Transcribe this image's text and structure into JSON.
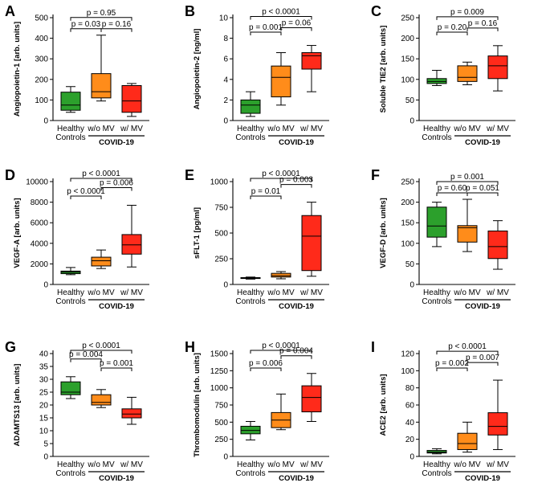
{
  "colors": {
    "healthy": "#2ca02c",
    "without_mv": "#ff8c1a",
    "with_mv": "#ff2a1a",
    "ink": "#000000"
  },
  "group_label": "COVID-19",
  "chart_data": [
    {
      "panel": "A",
      "type": "box",
      "ylabel": "Angiopoietin-1  [arb. units]",
      "ylim": [
        0,
        500
      ],
      "ticks": [
        0,
        100,
        200,
        300,
        400,
        500
      ],
      "tick_labels": [
        "0",
        "100",
        "200",
        "300",
        "400",
        "500"
      ],
      "categories": [
        [
          "Healthy",
          "Controls"
        ],
        [
          "w/o MV"
        ],
        [
          "w/ MV"
        ]
      ],
      "boxes": [
        {
          "min": 40,
          "q1": 50,
          "median": 75,
          "q3": 138,
          "max": 165
        },
        {
          "min": 95,
          "q1": 110,
          "median": 140,
          "q3": 228,
          "max": 415
        },
        {
          "min": 20,
          "q1": 40,
          "median": 95,
          "q3": 170,
          "max": 180
        }
      ],
      "brackets": [
        {
          "from": 0,
          "to": 2,
          "label": "p = 0.95",
          "level": 1
        },
        {
          "from": 0,
          "to": 1,
          "label": "p = 0.03",
          "level": 0
        },
        {
          "from": 1,
          "to": 2,
          "label": "p = 0.16",
          "level": 0
        }
      ]
    },
    {
      "panel": "B",
      "type": "box",
      "ylabel": "Angiopoietin-2  [ng/ml]",
      "ylim": [
        0,
        10
      ],
      "ticks": [
        0,
        2,
        4,
        6,
        8,
        10
      ],
      "tick_labels": [
        "0",
        "2",
        "4",
        "6",
        "8",
        "10"
      ],
      "categories": [
        [
          "Healthy",
          "Controls"
        ],
        [
          "w/o MV"
        ],
        [
          "w/ MV"
        ]
      ],
      "boxes": [
        {
          "min": 0.4,
          "q1": 0.7,
          "median": 1.5,
          "q3": 2.0,
          "max": 2.8
        },
        {
          "min": 1.5,
          "q1": 2.3,
          "median": 4.2,
          "q3": 5.3,
          "max": 6.6
        },
        {
          "min": 2.8,
          "q1": 5.0,
          "median": 6.3,
          "q3": 6.6,
          "max": 7.3
        }
      ],
      "brackets": [
        {
          "from": 0,
          "to": 2,
          "label": "p < 0.0001",
          "level": 2
        },
        {
          "from": 0,
          "to": 1,
          "label": "p = 0.001",
          "level": 0
        },
        {
          "from": 1,
          "to": 2,
          "label": "p = 0.06",
          "level": 1
        }
      ]
    },
    {
      "panel": "C",
      "type": "box",
      "ylabel": "Soluble TIE2  [arb. units]",
      "ylim": [
        0,
        250
      ],
      "ticks": [
        0,
        50,
        100,
        150,
        200,
        250
      ],
      "tick_labels": [
        "0",
        "50",
        "100",
        "150",
        "200",
        "250"
      ],
      "categories": [
        [
          "Healthy",
          "Controls"
        ],
        [
          "w/o MV"
        ],
        [
          "w/ MV"
        ]
      ],
      "boxes": [
        {
          "min": 85,
          "q1": 90,
          "median": 95,
          "q3": 102,
          "max": 122
        },
        {
          "min": 87,
          "q1": 95,
          "median": 105,
          "q3": 133,
          "max": 142
        },
        {
          "min": 72,
          "q1": 102,
          "median": 133,
          "q3": 157,
          "max": 182
        }
      ],
      "brackets": [
        {
          "from": 0,
          "to": 2,
          "label": "p = 0.009",
          "level": 2
        },
        {
          "from": 0,
          "to": 1,
          "label": "p = 0.20",
          "level": 0
        },
        {
          "from": 1,
          "to": 2,
          "label": "p = 0.16",
          "level": 1
        }
      ]
    },
    {
      "panel": "D",
      "type": "box",
      "ylabel": "VEGF-A  [arb. units]",
      "ylim": [
        0,
        10000
      ],
      "ticks": [
        0,
        2000,
        4000,
        6000,
        8000,
        10000
      ],
      "tick_labels": [
        "0",
        "2000",
        "4000",
        "6000",
        "8000",
        "10000"
      ],
      "categories": [
        [
          "Healthy",
          "Controls"
        ],
        [
          "w/o MV"
        ],
        [
          "w/ MV"
        ]
      ],
      "boxes": [
        {
          "min": 950,
          "q1": 1050,
          "median": 1200,
          "q3": 1300,
          "max": 1650
        },
        {
          "min": 1550,
          "q1": 1800,
          "median": 2300,
          "q3": 2650,
          "max": 3350
        },
        {
          "min": 1700,
          "q1": 2950,
          "median": 3850,
          "q3": 4850,
          "max": 7700
        }
      ],
      "brackets": [
        {
          "from": 0,
          "to": 2,
          "label": "p < 0.0001",
          "level": 2
        },
        {
          "from": 0,
          "to": 1,
          "label": "p < 0.0001",
          "level": 0
        },
        {
          "from": 1,
          "to": 2,
          "label": "p = 0.006",
          "level": 1
        }
      ]
    },
    {
      "panel": "E",
      "type": "box",
      "ylabel": "sFLT-1  [pg/ml]",
      "ylim": [
        0,
        1000
      ],
      "ticks": [
        0,
        250,
        500,
        750,
        1000
      ],
      "tick_labels": [
        "0",
        "250",
        "500",
        "750",
        "1000"
      ],
      "categories": [
        [
          "Healthy",
          "Controls"
        ],
        [
          "w/o MV"
        ],
        [
          "w/ MV"
        ]
      ],
      "boxes": [
        {
          "min": 52,
          "q1": 58,
          "median": 63,
          "q3": 67,
          "max": 72
        },
        {
          "min": 55,
          "q1": 72,
          "median": 85,
          "q3": 108,
          "max": 125
        },
        {
          "min": 80,
          "q1": 135,
          "median": 470,
          "q3": 670,
          "max": 800
        }
      ],
      "brackets": [
        {
          "from": 0,
          "to": 2,
          "label": "p < 0.0001",
          "level": 2
        },
        {
          "from": 0,
          "to": 1,
          "label": "p = 0.01",
          "level": 0
        },
        {
          "from": 1,
          "to": 2,
          "label": "p = 0.003",
          "level": 1
        }
      ]
    },
    {
      "panel": "F",
      "type": "box",
      "ylabel": "VEGF-D  [arb. units]",
      "ylim": [
        0,
        250
      ],
      "ticks": [
        0,
        50,
        100,
        150,
        200,
        250
      ],
      "tick_labels": [
        "0",
        "50",
        "100",
        "150",
        "200",
        "250"
      ],
      "categories": [
        [
          "Healthy",
          "Controls"
        ],
        [
          "w/o MV"
        ],
        [
          "w/ MV"
        ]
      ],
      "boxes": [
        {
          "min": 92,
          "q1": 115,
          "median": 142,
          "q3": 188,
          "max": 200
        },
        {
          "min": 80,
          "q1": 103,
          "median": 138,
          "q3": 143,
          "max": 207
        },
        {
          "min": 37,
          "q1": 63,
          "median": 92,
          "q3": 130,
          "max": 155
        }
      ],
      "brackets": [
        {
          "from": 0,
          "to": 2,
          "label": "p = 0.001",
          "level": 1
        },
        {
          "from": 0,
          "to": 1,
          "label": "p = 0.60",
          "level": 0
        },
        {
          "from": 1,
          "to": 2,
          "label": "p = 0.051",
          "level": 0
        }
      ]
    },
    {
      "panel": "G",
      "type": "box",
      "ylabel": "ADAMTS13  [arb. units]",
      "ylim": [
        0,
        40
      ],
      "ticks": [
        0,
        5,
        10,
        15,
        20,
        25,
        30,
        35,
        40
      ],
      "tick_labels": [
        "0",
        "5",
        "10",
        "15",
        "20",
        "25",
        "30",
        "35",
        "40"
      ],
      "categories": [
        [
          "Healthy",
          "Controls"
        ],
        [
          "w/o MV"
        ],
        [
          "w/ MV"
        ]
      ],
      "boxes": [
        {
          "min": 22.5,
          "q1": 24,
          "median": 25,
          "q3": 29,
          "max": 31
        },
        {
          "min": 19,
          "q1": 20,
          "median": 21,
          "q3": 24,
          "max": 26
        },
        {
          "min": 12.5,
          "q1": 15,
          "median": 16.5,
          "q3": 18.5,
          "max": 23
        }
      ],
      "brackets": [
        {
          "from": 0,
          "to": 2,
          "label": "p < 0.0001",
          "level": 2
        },
        {
          "from": 0,
          "to": 1,
          "label": "p = 0.004",
          "level": 1
        },
        {
          "from": 1,
          "to": 2,
          "label": "p = 0.001",
          "level": 0
        }
      ]
    },
    {
      "panel": "H",
      "type": "box",
      "ylabel": "Thrombomodulin  [arb. units]",
      "ylim": [
        0,
        1500
      ],
      "ticks": [
        0,
        250,
        500,
        750,
        1000,
        1250,
        1500
      ],
      "tick_labels": [
        "0",
        "250",
        "500",
        "750",
        "1000",
        "1250",
        "1500"
      ],
      "categories": [
        [
          "Healthy",
          "Controls"
        ],
        [
          "w/o MV"
        ],
        [
          "w/ MV"
        ]
      ],
      "boxes": [
        {
          "min": 240,
          "q1": 330,
          "median": 380,
          "q3": 440,
          "max": 510
        },
        {
          "min": 390,
          "q1": 420,
          "median": 530,
          "q3": 640,
          "max": 910
        },
        {
          "min": 510,
          "q1": 650,
          "median": 860,
          "q3": 1030,
          "max": 1210
        }
      ],
      "brackets": [
        {
          "from": 0,
          "to": 2,
          "label": "p < 0.0001",
          "level": 2
        },
        {
          "from": 0,
          "to": 1,
          "label": "p = 0.006",
          "level": 0
        },
        {
          "from": 1,
          "to": 2,
          "label": "p = 0.004",
          "level": 1
        }
      ]
    },
    {
      "panel": "I",
      "type": "box",
      "ylabel": "ACE2  [arb. units]",
      "ylim": [
        0,
        120
      ],
      "ticks": [
        0,
        20,
        40,
        60,
        80,
        100,
        120
      ],
      "tick_labels": [
        "0",
        "20",
        "40",
        "60",
        "80",
        "100",
        "120"
      ],
      "categories": [
        [
          "Healthy",
          "Controls"
        ],
        [
          "w/o MV"
        ],
        [
          "w/ MV"
        ]
      ],
      "boxes": [
        {
          "min": 3,
          "q1": 4,
          "median": 5,
          "q3": 7,
          "max": 9
        },
        {
          "min": 5,
          "q1": 8,
          "median": 15,
          "q3": 27,
          "max": 40
        },
        {
          "min": 8,
          "q1": 25,
          "median": 35,
          "q3": 51,
          "max": 89
        }
      ],
      "brackets": [
        {
          "from": 0,
          "to": 2,
          "label": "p < 0.0001",
          "level": 2
        },
        {
          "from": 0,
          "to": 1,
          "label": "p = 0.002",
          "level": 0
        },
        {
          "from": 1,
          "to": 2,
          "label": "p = 0.007",
          "level": 1
        }
      ]
    }
  ]
}
